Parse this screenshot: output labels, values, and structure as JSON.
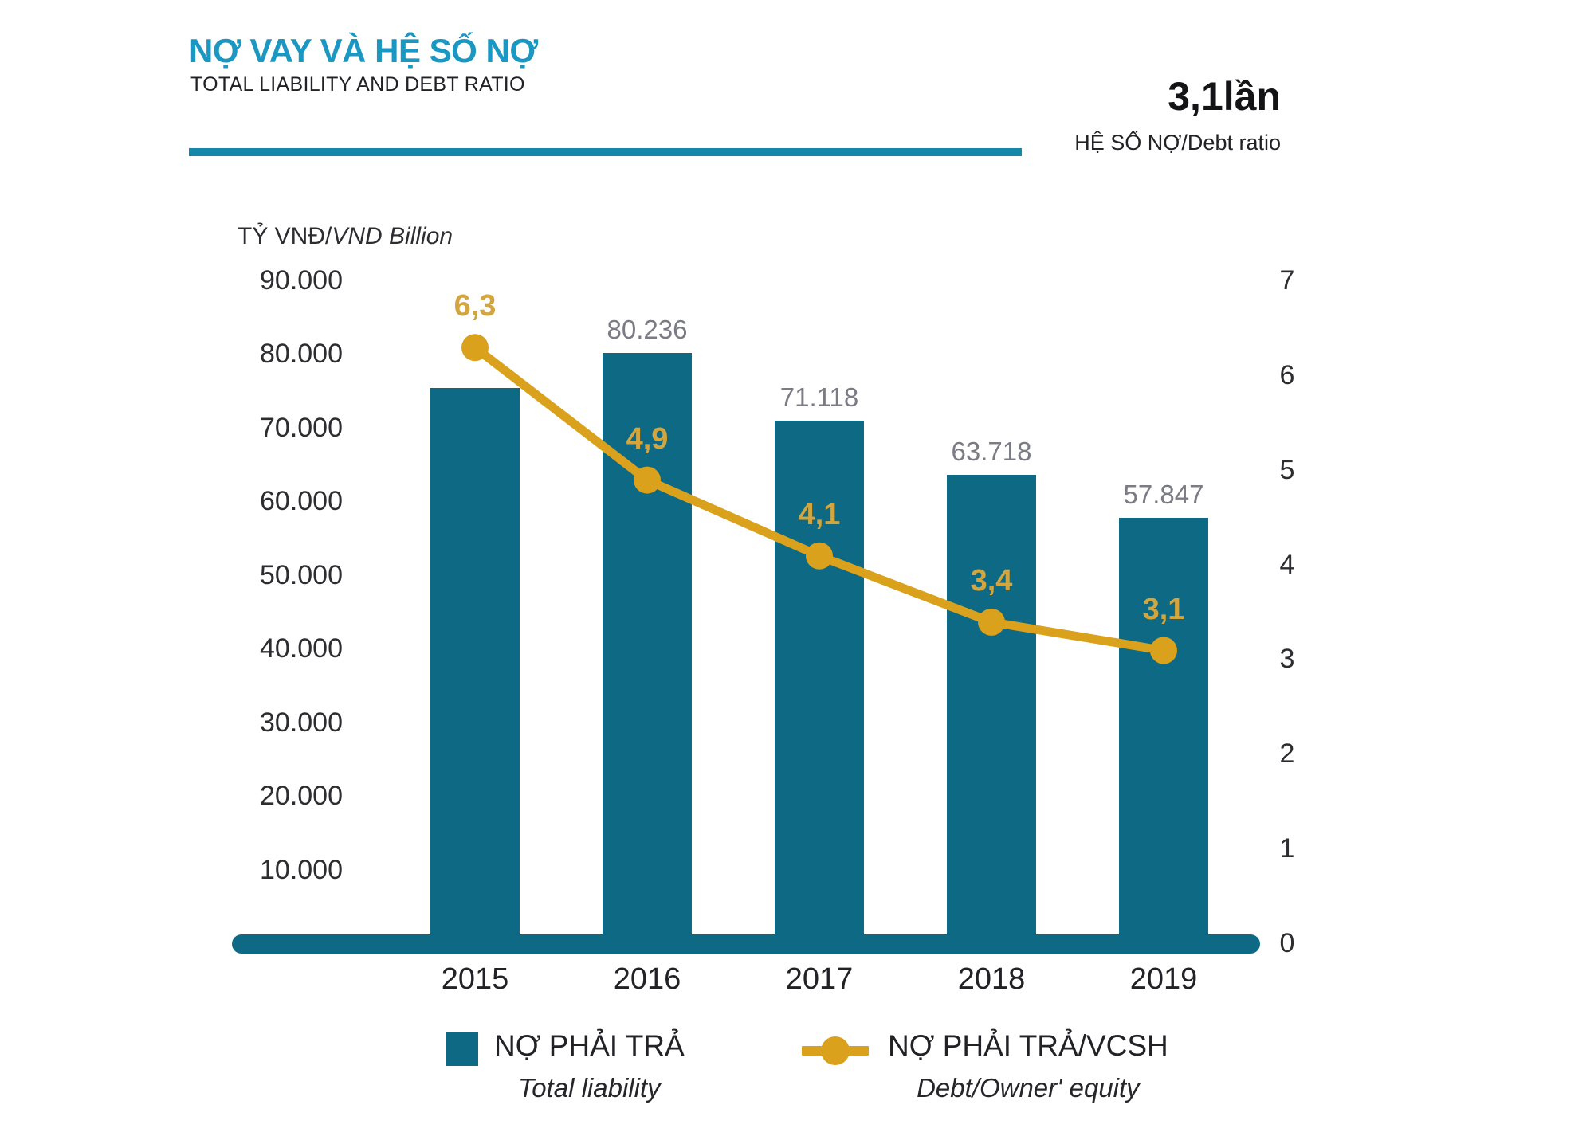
{
  "header": {
    "title": "NỢ VAY VÀ HỆ SỐ NỢ",
    "subtitle": "TOTAL LIABILITY AND DEBT RATIO",
    "highlight_value": "3,1lần",
    "highlight_label": "HỆ SỐ NỢ/Debt ratio"
  },
  "unit_label": {
    "primary": "TỶ VNĐ/",
    "secondary": "VND Billion"
  },
  "chart_data": {
    "type": "bar+line",
    "categories": [
      "2015",
      "2016",
      "2017",
      "2018",
      "2019"
    ],
    "series": [
      {
        "name": "NỢ PHẢI TRẢ",
        "name_en": "Total liability",
        "type": "bar",
        "axis": "left",
        "values": [
          75500,
          80236,
          71118,
          63718,
          57847
        ],
        "value_labels": [
          "",
          "80.236",
          "71.118",
          "63.718",
          "57.847"
        ],
        "note": "2015 bar carries no printed value label; 75500 estimated from axis gridlines"
      },
      {
        "name": "NỢ PHẢI TRẢ/VCSH",
        "name_en": "Debt/Owner' equity",
        "type": "line",
        "axis": "right",
        "values": [
          6.3,
          4.9,
          4.1,
          3.4,
          3.1
        ],
        "value_labels": [
          "6,3",
          "4,9",
          "4,1",
          "3,4",
          "3,1"
        ]
      }
    ],
    "left_axis": {
      "title": "TỶ VNĐ/VND Billion",
      "min": 0,
      "max": 90000,
      "tick_labels": [
        "90.000",
        "80.000",
        "70.000",
        "60.000",
        "50.000",
        "40.000",
        "30.000",
        "20.000",
        "10.000"
      ],
      "tick_values": [
        90000,
        80000,
        70000,
        60000,
        50000,
        40000,
        30000,
        20000,
        10000
      ]
    },
    "right_axis": {
      "title": "HỆ SỐ NỢ/Debt ratio",
      "min": 0,
      "max": 7,
      "tick_labels": [
        "7",
        "6",
        "5",
        "4",
        "3",
        "2",
        "1",
        "0"
      ],
      "tick_values": [
        7,
        6,
        5,
        4,
        3,
        2,
        1,
        0
      ]
    },
    "grid": "off",
    "legend_position": "bottom"
  },
  "legend": [
    {
      "label": "NỢ PHẢI TRẢ",
      "sublabel": "Total liability",
      "marker": "square"
    },
    {
      "label": "NỢ PHẢI TRẢ/VCSH",
      "sublabel": "Debt/Owner' equity",
      "marker": "line-dot"
    }
  ],
  "colors": {
    "title": "#1b98c1",
    "rule": "#1587a8",
    "bar": "#0e6a84",
    "line": "#d9a11c",
    "line_label": "#d3a53e",
    "bar_label": "#7b7b85",
    "axis_text": "#2d2d31",
    "baseline": "#0e6a84"
  }
}
